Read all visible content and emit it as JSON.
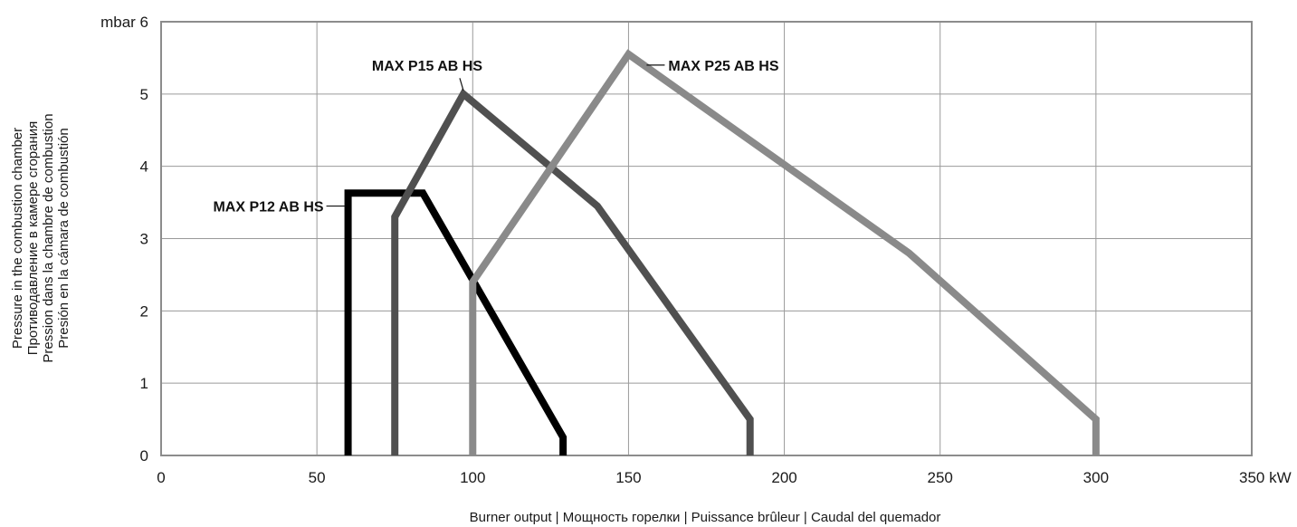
{
  "chart_data": {
    "type": "line",
    "xlabel": "Burner output | Мощность горелки | Puissance brûleur | Caudal del quemador",
    "ylabel_lines": [
      "Pressure in the combustion chamber",
      "Противодавление в камере сгорания",
      "Pression dans la chambre de combustion",
      "Presión en la cámara de combustión"
    ],
    "x_unit": "kW",
    "y_unit": "mbar",
    "xlim": [
      0,
      350
    ],
    "ylim": [
      0,
      6
    ],
    "x_ticks": [
      "0",
      "50",
      "100",
      "150",
      "200",
      "250",
      "300",
      "350 kW"
    ],
    "y_ticks": [
      "0",
      "1",
      "2",
      "3",
      "4",
      "5",
      "mbar 6"
    ],
    "grid": true,
    "series": [
      {
        "name": "MAX P12 AB HS",
        "color": "#000000",
        "points": [
          [
            60,
            0
          ],
          [
            60,
            3.63
          ],
          [
            84,
            3.63
          ],
          [
            129,
            0.25
          ],
          [
            129,
            0
          ]
        ]
      },
      {
        "name": "MAX P15 AB HS",
        "color": "#505050",
        "points": [
          [
            75,
            0
          ],
          [
            75,
            3.3
          ],
          [
            97,
            5.0
          ],
          [
            140,
            3.45
          ],
          [
            189,
            0.5
          ],
          [
            189,
            0
          ]
        ]
      },
      {
        "name": "MAX P25 AB HS",
        "color": "#8a8a8a",
        "points": [
          [
            100,
            0
          ],
          [
            100,
            2.4
          ],
          [
            150,
            5.55
          ],
          [
            240,
            2.8
          ],
          [
            300,
            0.5
          ],
          [
            300,
            0
          ]
        ]
      }
    ]
  }
}
